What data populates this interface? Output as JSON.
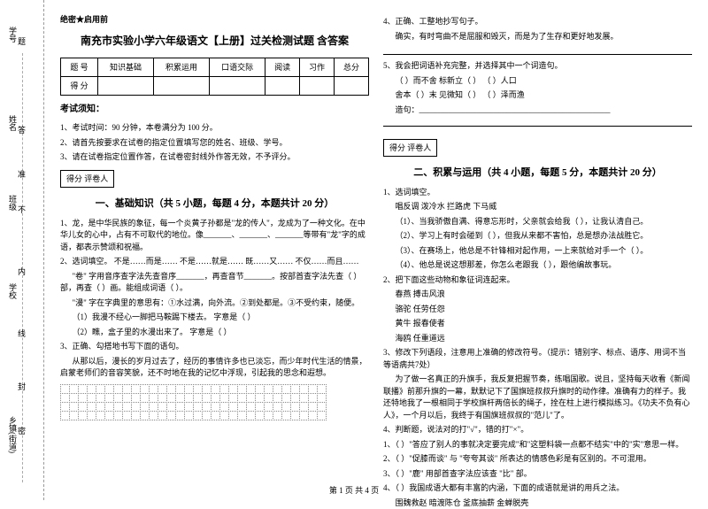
{
  "sidebar": {
    "labels": [
      "学号",
      "姓名",
      "班级",
      "学校",
      "乡镇(街道)"
    ],
    "chars": [
      "题",
      "答",
      "准",
      "不",
      "内",
      "线",
      "封",
      "密"
    ]
  },
  "header": {
    "mark": "绝密★启用前",
    "title": "南充市实验小学六年级语文【上册】过关检测试题 含答案"
  },
  "scoreTable": {
    "headers": [
      "题 号",
      "知识基础",
      "积累运用",
      "口语交际",
      "阅读",
      "习作",
      "总分"
    ],
    "row2": "得 分"
  },
  "notice": {
    "title": "考试须知：",
    "items": [
      "1、考试时间：90 分钟，本卷满分为 100 分。",
      "2、请首先按要求在试卷的指定位置填写您的姓名、班级、学号。",
      "3、请在试卷指定位置作答，在试卷密封线外作答无效，不予评分。"
    ]
  },
  "scorer": "得分  评卷人",
  "section1": {
    "title": "一、基础知识（共 5 小题，每题 4 分，本题共计 20 分）",
    "q1": "1、龙，是中华民族的象征，每一个炎黄子孙都是\"龙的传人\"，龙成为了一种文化。在中华儿女的心中，占有不可取代的地位。像_______、_______、_______等带有\"龙\"字的成语，都表示赞颂和祝福。",
    "q2": "2、选词填空。 不是……而是……    不是……就是……    既……又……    不仅……而且……",
    "q2a": "\"卷\" 字用音序查字法先查音序_______，再查音节_______。按部首查字法先查（    ）部，再查（    ）画。能组成词语（    ）。",
    "q2b": "\"漫\" 字在字典里的意思有：①水过满，向外流。②到处都是。③不受约束，随便。",
    "q2c": "（1）我漫不经心一脚把马鞍踢下楼去。  字意是（    ）",
    "q2d": "（2）瞧，盒子里的水漫出来了。        字意是（    ）",
    "q3": "3、正确、勾搭地书写下面的语句。",
    "q3a": "从那以后，漫长的岁月过去了，经历的事情许多也已淡忘，而少年时代生活的情景，启蒙老师们的音容笑貌，还不时地在我的记忆中浮现，引起我的思念和遐想。"
  },
  "col2": {
    "q4": "4、正确、工整地抄写句子。",
    "q4a": "确实，有时弯曲不是屈服和毁灭，而是为了生存和更好地发展。",
    "q5": "5、我会把词语补充完整，并选择其中一个词造句。",
    "q5a": "（    ）而不舍        标新立（    ）        （    ）人口",
    "q5b": "舍本（    ）末        见微知（    ）        （    ）泽而渔",
    "q5c": "造句：________________________________________________",
    "section2title": "二、积累与运用（共 4 小题，每题 5 分，本题共计 20 分）",
    "q21": "1、选词填空。",
    "q21words": "唱反调    泼冷水    拦路虎    下马威",
    "q21a": "（1）、当我骄傲自满、得意忘形时，父亲就会给我（        ），让我认清自己。",
    "q21b": "（2）、学习上有时会碰到（        ），但我从来都不害怕，总是想办法战胜它。",
    "q21c": "（3）、在赛场上，他总是不针锋相对起作用，一上来就给对手一个（        ）。",
    "q21d": "（4）、他总是说这想那差，你怎么老跟我（        ），跟他编故事玩。",
    "q22": "2、把下面这些动物和象征词连起来。",
    "q22a": "春燕            搏击风浪",
    "q22b": "骆驼            任劳任怨",
    "q22c": "黄牛            报春使者",
    "q22d": "海鸥            任重道远",
    "q23": "3、修改下列语段，注意用上准确的修改符号。（提示：错别字、标点、语序、用词不当等语病共7处）",
    "q23a": "为了做一名真正的升旗手，我反复把握节奏，练唱国歌。说且，坚持每天收看《新闻联播》前那升旗的一幕，默默记下了国旗班叔叔升旗时的动作律。准确有力的样子。我还特地我了一根相同于学校旗杆两倍长的绳子，拴在柱上进行模拟练习。《功夫不负有心人》，一个月以后，我终于有国旗班叔叔的\"范儿\"了。",
    "q24": "4、判断题，说法对的打\"√\"，错的打\"×\"。",
    "q24a": "1、（    ）\"答应了别人的事就决定要完成\"和\"这塑料袋一点都不结实\"中的\"实\"意思一样。",
    "q24b": "2、（    ）\"促膝而谈\" 与 \"夸夸其谈\" 所表达的情感色彩是有区别的。不可混用。",
    "q24c": "3、（    ）\"鹿\" 用部首查字法应该查 \"比\" 部。",
    "q24d": "4、（    ）我国成语大都有丰富的内涵，下面的成语就是讲的用兵之法。",
    "q24e": "围魏救赵    暗渡陈仓    釜底抽薪    金蝉脱壳"
  },
  "footer": "第 1 页 共 4 页"
}
